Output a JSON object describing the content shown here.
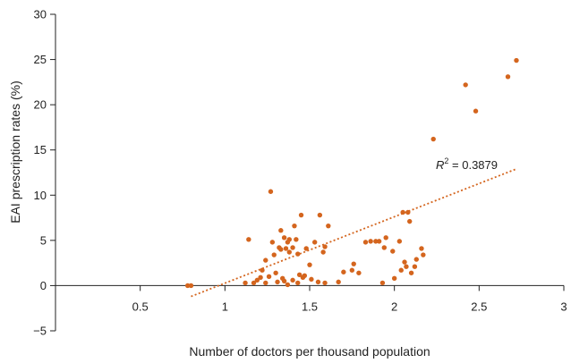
{
  "chart_data": {
    "type": "scatter",
    "title": "",
    "xlabel": "Number of doctors per thousand population",
    "ylabel": "EAI prescription rates (%)",
    "xlim": [
      0,
      3
    ],
    "ylim": [
      -5,
      30
    ],
    "x_ticks": [
      0.5,
      1,
      1.5,
      2,
      2.5,
      3
    ],
    "x_tick_labels": [
      "0.5",
      "1",
      "1.5",
      "2",
      "2.5",
      "3"
    ],
    "y_ticks": [
      -5,
      0,
      5,
      10,
      15,
      20,
      25,
      30
    ],
    "y_tick_labels": [
      "−5",
      "0",
      "5",
      "10",
      "15",
      "20",
      "25",
      "30"
    ],
    "grid": false,
    "marker_color": "#d4651e",
    "trend_color": "#d4651e",
    "annotation": {
      "r_label": "R",
      "r_exp": "2",
      "r_value": " = 0.3879"
    },
    "trendline": {
      "x": [
        0.8,
        2.72
      ],
      "y": [
        -1.2,
        12.9
      ]
    },
    "points": [
      {
        "x": 0.78,
        "y": 0.0
      },
      {
        "x": 0.8,
        "y": 0.0
      },
      {
        "x": 1.12,
        "y": 0.3
      },
      {
        "x": 1.14,
        "y": 5.1
      },
      {
        "x": 1.17,
        "y": 0.3
      },
      {
        "x": 1.19,
        "y": 0.6
      },
      {
        "x": 1.21,
        "y": 0.9
      },
      {
        "x": 1.22,
        "y": 1.7
      },
      {
        "x": 1.24,
        "y": 0.3
      },
      {
        "x": 1.24,
        "y": 2.8
      },
      {
        "x": 1.26,
        "y": 1.0
      },
      {
        "x": 1.27,
        "y": 10.4
      },
      {
        "x": 1.28,
        "y": 4.8
      },
      {
        "x": 1.29,
        "y": 3.4
      },
      {
        "x": 1.3,
        "y": 1.4
      },
      {
        "x": 1.31,
        "y": 0.4
      },
      {
        "x": 1.32,
        "y": 4.2
      },
      {
        "x": 1.33,
        "y": 6.1
      },
      {
        "x": 1.33,
        "y": 4.0
      },
      {
        "x": 1.34,
        "y": 0.8
      },
      {
        "x": 1.35,
        "y": 0.5
      },
      {
        "x": 1.35,
        "y": 5.3
      },
      {
        "x": 1.36,
        "y": 4.1
      },
      {
        "x": 1.37,
        "y": 4.8
      },
      {
        "x": 1.37,
        "y": 0.1
      },
      {
        "x": 1.38,
        "y": 5.1
      },
      {
        "x": 1.38,
        "y": 3.7
      },
      {
        "x": 1.4,
        "y": 0.6
      },
      {
        "x": 1.4,
        "y": 4.2
      },
      {
        "x": 1.41,
        "y": 6.6
      },
      {
        "x": 1.42,
        "y": 5.1
      },
      {
        "x": 1.43,
        "y": 0.3
      },
      {
        "x": 1.43,
        "y": 3.5
      },
      {
        "x": 1.44,
        "y": 1.2
      },
      {
        "x": 1.45,
        "y": 7.8
      },
      {
        "x": 1.46,
        "y": 0.9
      },
      {
        "x": 1.47,
        "y": 1.1
      },
      {
        "x": 1.48,
        "y": 4.1
      },
      {
        "x": 1.5,
        "y": 2.3
      },
      {
        "x": 1.51,
        "y": 0.7
      },
      {
        "x": 1.53,
        "y": 4.8
      },
      {
        "x": 1.55,
        "y": 0.4
      },
      {
        "x": 1.56,
        "y": 7.8
      },
      {
        "x": 1.58,
        "y": 3.7
      },
      {
        "x": 1.59,
        "y": 4.3
      },
      {
        "x": 1.59,
        "y": 0.3
      },
      {
        "x": 1.61,
        "y": 6.6
      },
      {
        "x": 1.67,
        "y": 0.4
      },
      {
        "x": 1.7,
        "y": 1.5
      },
      {
        "x": 1.75,
        "y": 1.7
      },
      {
        "x": 1.76,
        "y": 2.4
      },
      {
        "x": 1.79,
        "y": 1.4
      },
      {
        "x": 1.83,
        "y": 4.8
      },
      {
        "x": 1.86,
        "y": 4.9
      },
      {
        "x": 1.89,
        "y": 4.9
      },
      {
        "x": 1.91,
        "y": 4.9
      },
      {
        "x": 1.93,
        "y": 0.3
      },
      {
        "x": 1.94,
        "y": 4.2
      },
      {
        "x": 1.95,
        "y": 5.3
      },
      {
        "x": 1.99,
        "y": 3.8
      },
      {
        "x": 2.0,
        "y": 0.8
      },
      {
        "x": 2.03,
        "y": 4.9
      },
      {
        "x": 2.04,
        "y": 1.7
      },
      {
        "x": 2.05,
        "y": 8.1
      },
      {
        "x": 2.06,
        "y": 2.6
      },
      {
        "x": 2.07,
        "y": 2.1
      },
      {
        "x": 2.08,
        "y": 8.1
      },
      {
        "x": 2.09,
        "y": 7.1
      },
      {
        "x": 2.1,
        "y": 1.4
      },
      {
        "x": 2.12,
        "y": 2.1
      },
      {
        "x": 2.13,
        "y": 2.9
      },
      {
        "x": 2.16,
        "y": 4.1
      },
      {
        "x": 2.17,
        "y": 3.4
      },
      {
        "x": 2.23,
        "y": 16.2
      },
      {
        "x": 2.42,
        "y": 22.2
      },
      {
        "x": 2.48,
        "y": 19.3
      },
      {
        "x": 2.67,
        "y": 23.1
      },
      {
        "x": 2.72,
        "y": 24.9
      }
    ]
  }
}
